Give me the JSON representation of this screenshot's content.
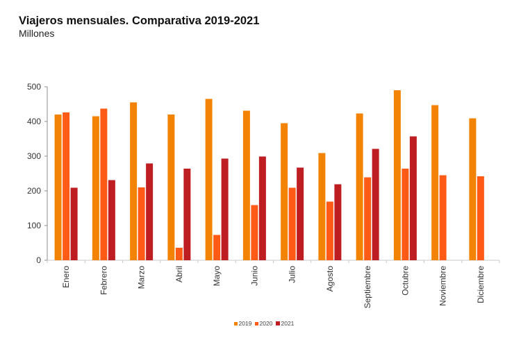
{
  "chart_data": {
    "type": "bar",
    "title": "Viajeros mensuales. Comparativa 2019-2021",
    "subtitle": "Millones",
    "xlabel": "",
    "ylabel": "",
    "ylim": [
      0,
      500
    ],
    "yticks": [
      0,
      100,
      200,
      300,
      400,
      500
    ],
    "grid": false,
    "legend": "bottom-center",
    "categories": [
      "Enero",
      "Febrero",
      "Marzo",
      "Abril",
      "Mayo",
      "Junio",
      "Julio",
      "Agosto",
      "Septiembre",
      "Octubre",
      "Noviembre",
      "Diciembre"
    ],
    "series": [
      {
        "name": "2019",
        "color": "#F28305",
        "values": [
          420,
          415,
          455,
          420,
          465,
          431,
          395,
          309,
          423,
          490,
          447,
          409
        ]
      },
      {
        "name": "2020",
        "color": "#FF5B17",
        "values": [
          426,
          437,
          210,
          36,
          73,
          159,
          209,
          169,
          239,
          264,
          245,
          242
        ]
      },
      {
        "name": "2021",
        "color": "#BE1E22",
        "values": [
          209,
          231,
          279,
          264,
          293,
          299,
          267,
          219,
          321,
          357,
          null,
          null
        ]
      }
    ]
  }
}
